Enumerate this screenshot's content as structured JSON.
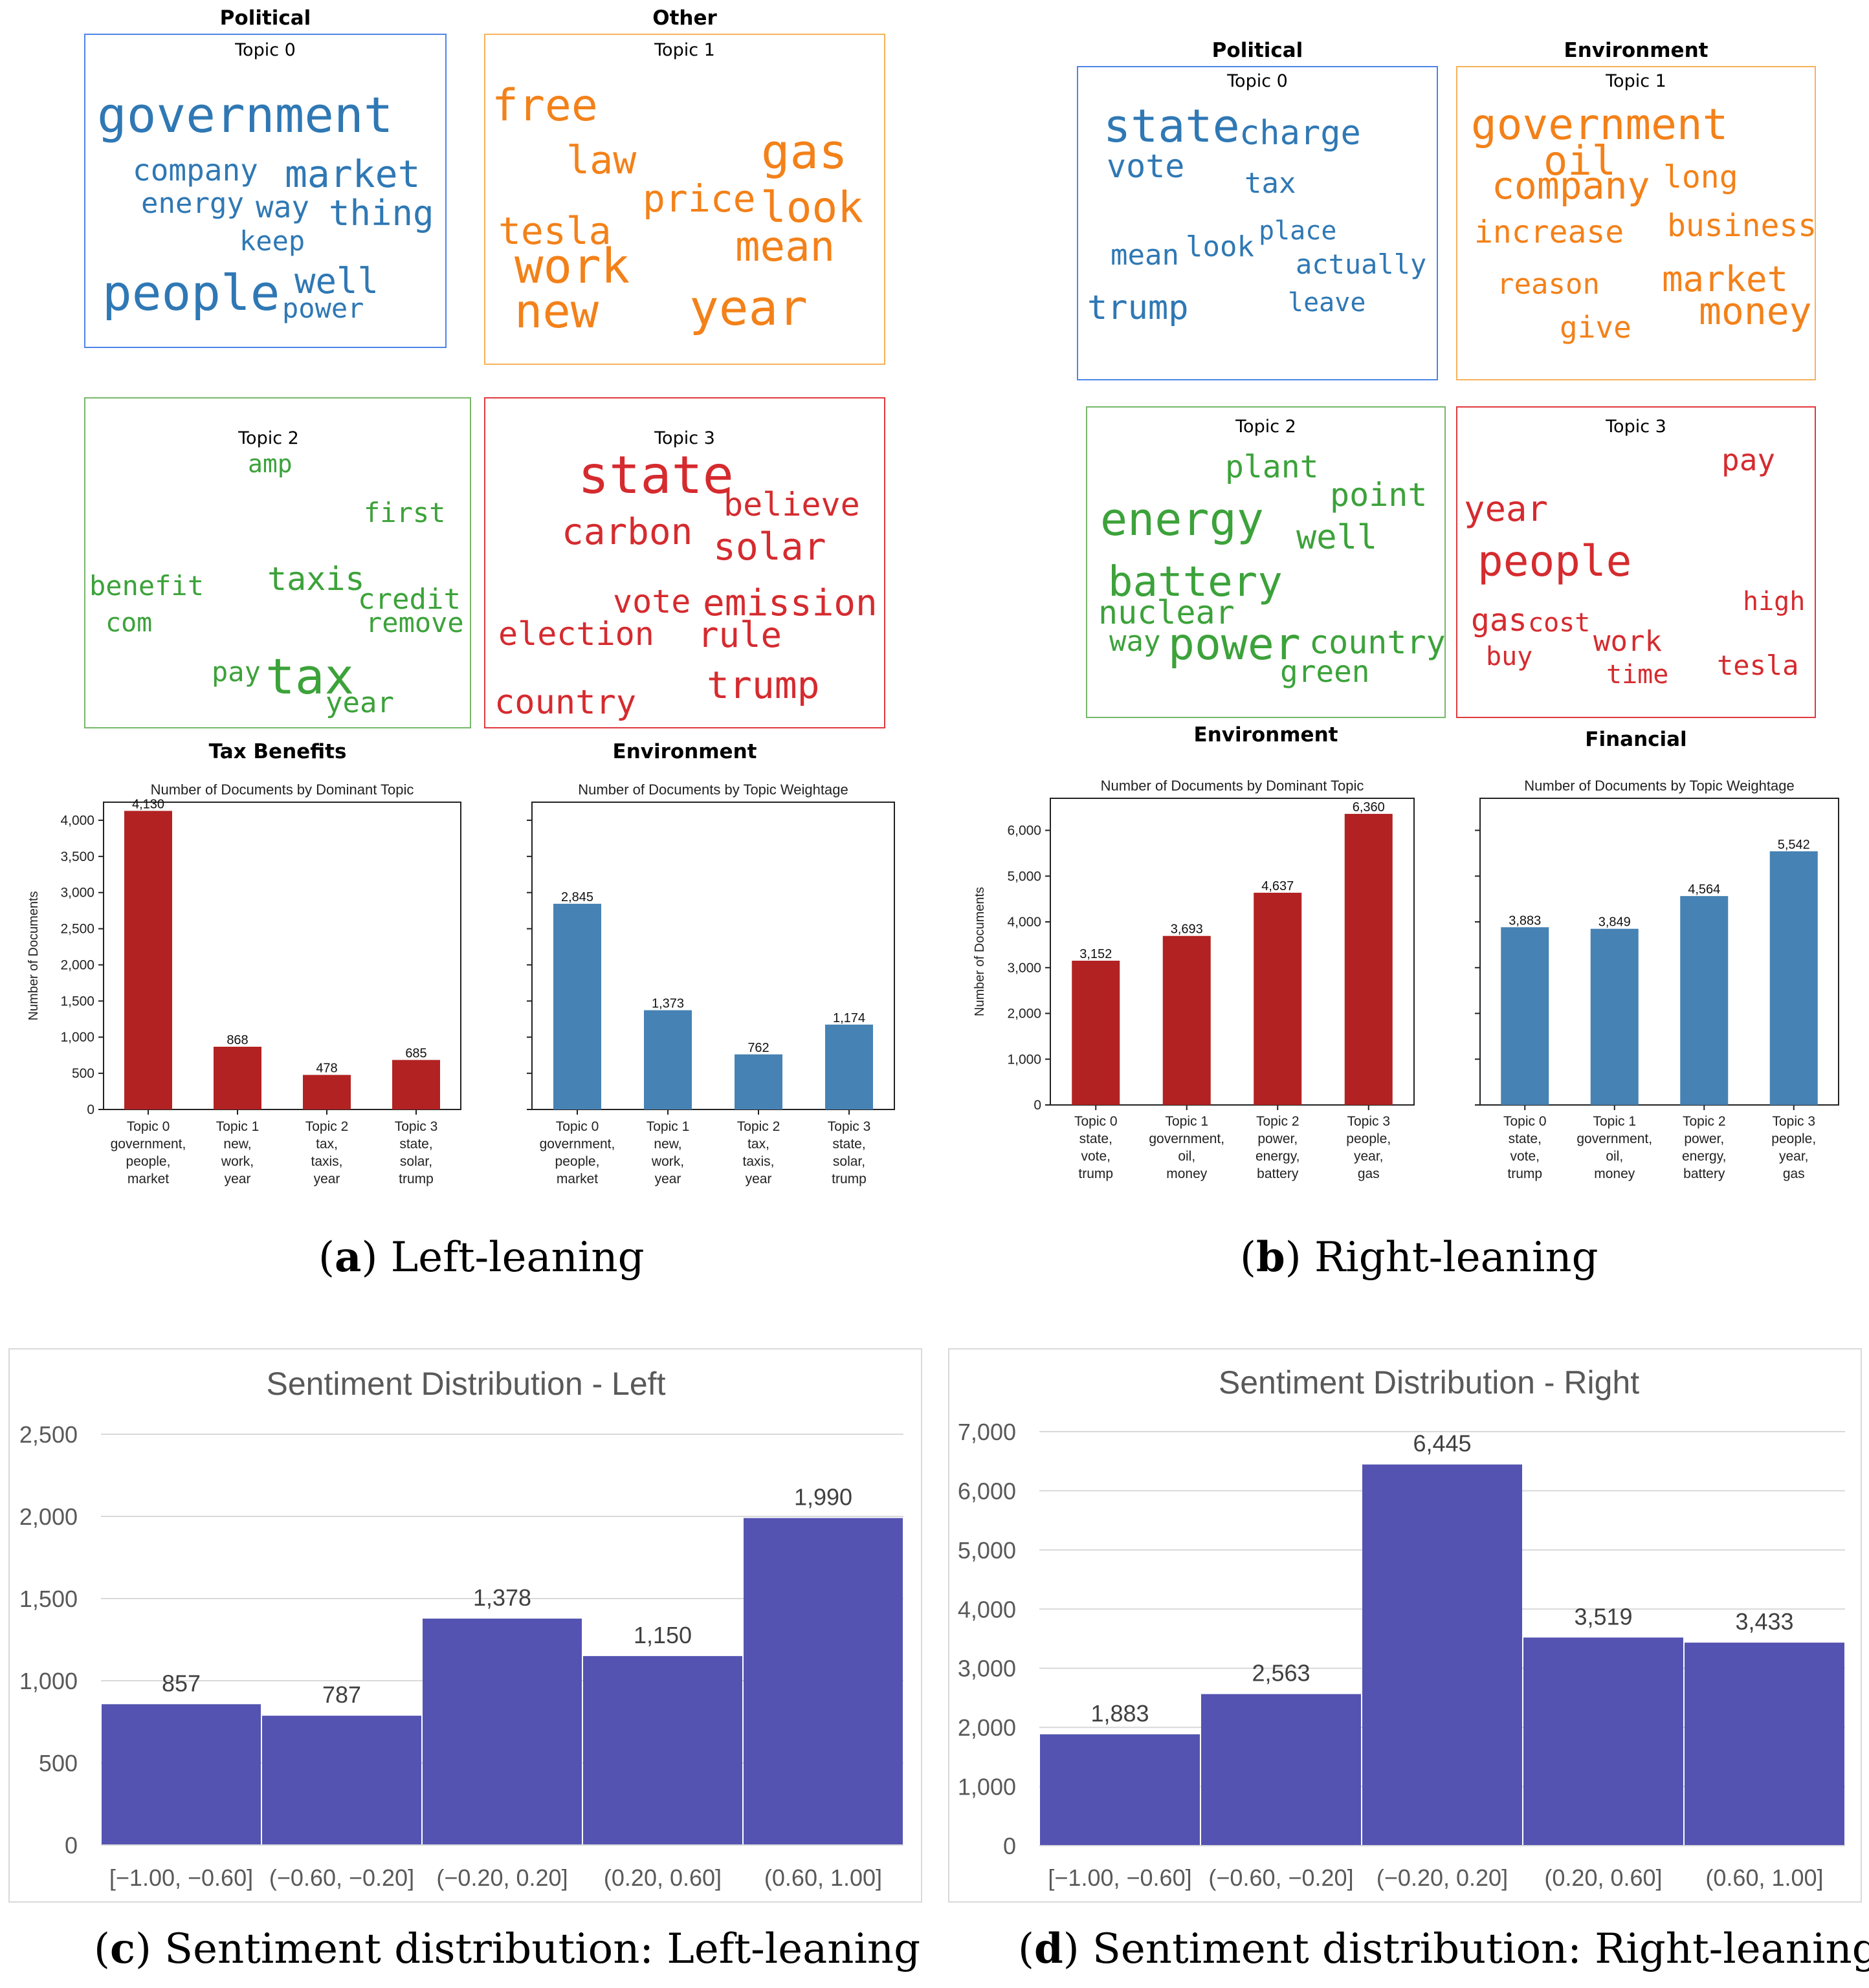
{
  "captions": {
    "a": {
      "label": "a",
      "text": "Left-leaning"
    },
    "b": {
      "label": "b",
      "text": "Right-leaning"
    },
    "c": {
      "label": "c",
      "text": "Sentiment distribution: Left-leaning"
    },
    "d": {
      "label": "d",
      "text": "Sentiment distribution: Right-leaning"
    }
  },
  "wordclouds": {
    "left": [
      {
        "category": "Political",
        "title": "Topic 0",
        "color": "#2f78b4",
        "words": [
          "government",
          "company",
          "market",
          "energy",
          "way",
          "thing",
          "keep",
          "people",
          "well",
          "power"
        ]
      },
      {
        "category": "Other",
        "title": "Topic 1",
        "color": "#f38119",
        "words": [
          "free",
          "law",
          "gas",
          "price",
          "look",
          "tesla",
          "mean",
          "work",
          "new",
          "year"
        ]
      },
      {
        "category": "Tax Benefits",
        "title": "Topic 2",
        "color": "#3ca23a",
        "words": [
          "amp",
          "first",
          "benefit",
          "taxis",
          "credit",
          "com",
          "remove",
          "pay",
          "tax",
          "year"
        ]
      },
      {
        "category": "Environment",
        "title": "Topic 3",
        "color": "#d52b2f",
        "words": [
          "state",
          "believe",
          "carbon",
          "solar",
          "vote",
          "emission",
          "election",
          "rule",
          "trump",
          "country"
        ]
      }
    ],
    "right": [
      {
        "category": "Political",
        "title": "Topic 0",
        "color": "#2f78b4",
        "words": [
          "state",
          "charge",
          "vote",
          "tax",
          "place",
          "mean",
          "look",
          "actually",
          "trump",
          "leave"
        ]
      },
      {
        "category": "Environment",
        "title": "Topic 1",
        "color": "#f38119",
        "words": [
          "government",
          "oil",
          "company",
          "long",
          "increase",
          "business",
          "reason",
          "market",
          "money",
          "give"
        ]
      },
      {
        "category": "Environment",
        "title": "Topic 2",
        "color": "#3ca23a",
        "words": [
          "plant",
          "point",
          "energy",
          "well",
          "battery",
          "nuclear",
          "way",
          "power",
          "country",
          "green"
        ]
      },
      {
        "category": "Financial",
        "title": "Topic 3",
        "color": "#d52b2f",
        "words": [
          "pay",
          "year",
          "people",
          "high",
          "gas",
          "cost",
          "work",
          "buy",
          "time",
          "tesla"
        ]
      }
    ]
  },
  "chart_data": [
    {
      "id": "left-dominant",
      "type": "bar",
      "title": "Number of Documents by Dominant Topic",
      "ylabel": "Number of Documents",
      "categories": [
        [
          "Topic 0",
          "government,",
          "people,",
          "market"
        ],
        [
          "Topic 1",
          "new,",
          "work,",
          "year"
        ],
        [
          "Topic 2",
          "tax,",
          "taxis,",
          "year"
        ],
        [
          "Topic 3",
          "state,",
          "solar,",
          "trump"
        ]
      ],
      "values": [
        4130,
        868,
        478,
        685
      ],
      "value_labels": [
        "4,130",
        "868",
        "478",
        "685"
      ],
      "ylim": [
        0,
        4250
      ],
      "yticks": [
        0,
        500,
        1000,
        1500,
        2000,
        2500,
        3000,
        3500,
        4000
      ],
      "ytick_labels": [
        "0",
        "500",
        "1,000",
        "1,500",
        "2,000",
        "2,500",
        "3,000",
        "3,500",
        "4,000"
      ],
      "color": "#b22222"
    },
    {
      "id": "left-weightage",
      "type": "bar",
      "title": "Number of Documents by Topic Weightage",
      "ylabel": "",
      "categories": [
        [
          "Topic 0",
          "government,",
          "people,",
          "market"
        ],
        [
          "Topic 1",
          "new,",
          "work,",
          "year"
        ],
        [
          "Topic 2",
          "tax,",
          "taxis,",
          "year"
        ],
        [
          "Topic 3",
          "state,",
          "solar,",
          "trump"
        ]
      ],
      "values": [
        2845,
        1373,
        762,
        1174
      ],
      "value_labels": [
        "2,845",
        "1,373",
        "762",
        "1,174"
      ],
      "ylim": [
        0,
        4250
      ],
      "yticks": [
        0,
        500,
        1000,
        1500,
        2000,
        2500,
        3000,
        3500,
        4000
      ],
      "ytick_labels": [],
      "color": "#4682b4"
    },
    {
      "id": "right-dominant",
      "type": "bar",
      "title": "Number of Documents by Dominant Topic",
      "ylabel": "Number of Documents",
      "categories": [
        [
          "Topic 0",
          "state,",
          "vote,",
          "trump"
        ],
        [
          "Topic 1",
          "government,",
          "oil,",
          "money"
        ],
        [
          "Topic 2",
          "power,",
          "energy,",
          "battery"
        ],
        [
          "Topic 3",
          "people,",
          "year,",
          "gas"
        ]
      ],
      "values": [
        3152,
        3693,
        4637,
        6360
      ],
      "value_labels": [
        "3,152",
        "3,693",
        "4,637",
        "6,360"
      ],
      "ylim": [
        0,
        6700
      ],
      "yticks": [
        0,
        1000,
        2000,
        3000,
        4000,
        5000,
        6000
      ],
      "ytick_labels": [
        "0",
        "1,000",
        "2,000",
        "3,000",
        "4,000",
        "5,000",
        "6,000"
      ],
      "color": "#b22222"
    },
    {
      "id": "right-weightage",
      "type": "bar",
      "title": "Number of Documents by Topic Weightage",
      "ylabel": "",
      "categories": [
        [
          "Topic 0",
          "state,",
          "vote,",
          "trump"
        ],
        [
          "Topic 1",
          "government,",
          "oil,",
          "money"
        ],
        [
          "Topic 2",
          "power,",
          "energy,",
          "battery"
        ],
        [
          "Topic 3",
          "people,",
          "year,",
          "gas"
        ]
      ],
      "values": [
        3883,
        3849,
        4564,
        5542
      ],
      "value_labels": [
        "3,883",
        "3,849",
        "4,564",
        "5,542"
      ],
      "ylim": [
        0,
        6700
      ],
      "yticks": [
        0,
        1000,
        2000,
        3000,
        4000,
        5000,
        6000
      ],
      "ytick_labels": [],
      "color": "#4682b4"
    },
    {
      "id": "sentiment-left",
      "type": "bar",
      "title": "Sentiment Distribution - Left",
      "categories": [
        "[−1.00, −0.60]",
        "(−0.60, −0.20]",
        "(−0.20, 0.20]",
        "(0.20, 0.60]",
        "(0.60, 1.00]"
      ],
      "values": [
        857,
        787,
        1378,
        1150,
        1990
      ],
      "value_labels": [
        "857",
        "787",
        "1,378",
        "1,150",
        "1,990"
      ],
      "ylim": [
        0,
        2500
      ],
      "yticks": [
        0,
        500,
        1000,
        1500,
        2000,
        2500
      ],
      "ytick_labels": [
        "0",
        "500",
        "1,000",
        "1,500",
        "2,000",
        "2,500"
      ],
      "grid": true,
      "color": "#5453b2"
    },
    {
      "id": "sentiment-right",
      "type": "bar",
      "title": "Sentiment Distribution - Right",
      "categories": [
        "[−1.00, −0.60]",
        "(−0.60, −0.20]",
        "(−0.20, 0.20]",
        "(0.20, 0.60]",
        "(0.60, 1.00]"
      ],
      "values": [
        1883,
        2563,
        6445,
        3519,
        3433
      ],
      "value_labels": [
        "1,883",
        "2,563",
        "6,445",
        "3,519",
        "3,433"
      ],
      "ylim": [
        0,
        7000
      ],
      "yticks": [
        0,
        1000,
        2000,
        3000,
        4000,
        5000,
        6000,
        7000
      ],
      "ytick_labels": [
        "0",
        "1,000",
        "2,000",
        "3,000",
        "4,000",
        "5,000",
        "6,000",
        "7,000"
      ],
      "grid": true,
      "color": "#5453b2"
    }
  ]
}
